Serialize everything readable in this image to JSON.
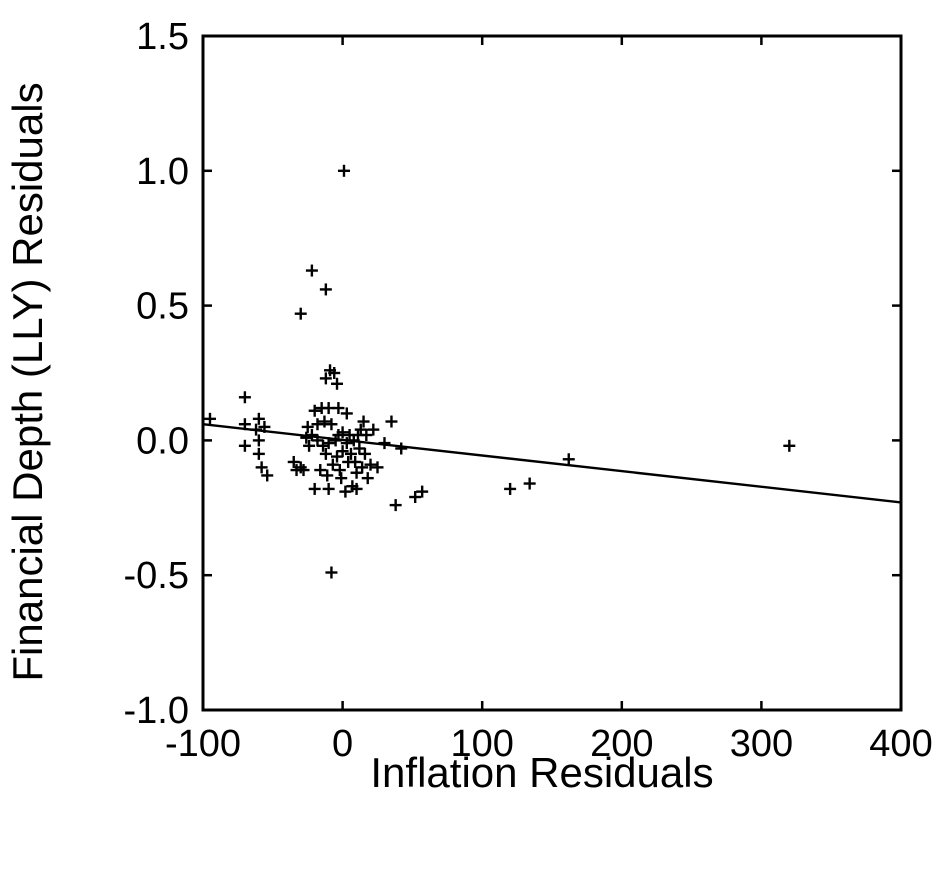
{
  "chart_data": {
    "type": "scatter",
    "xlabel": "Inflation Residuals",
    "ylabel": "Financial Depth (LLY) Residuals",
    "xlim": [
      -100,
      400
    ],
    "ylim": [
      -1.0,
      1.5
    ],
    "x_ticks": [
      -100,
      0,
      100,
      200,
      300,
      400
    ],
    "x_tick_labels": [
      "-100",
      "0",
      "100",
      "200",
      "300",
      "400"
    ],
    "y_ticks": [
      -1.0,
      -0.5,
      0.0,
      0.5,
      1.0,
      1.5
    ],
    "y_tick_labels": [
      "-1.0",
      "-0.5",
      "0.0",
      "0.5",
      "1.0",
      "1.5"
    ],
    "grid": false,
    "marker": "plus",
    "fit_line": {
      "x": [
        -100,
        400
      ],
      "y": [
        0.06,
        -0.23
      ]
    },
    "points": [
      {
        "x": -95,
        "y": 0.08
      },
      {
        "x": -70,
        "y": 0.16
      },
      {
        "x": -70,
        "y": 0.06
      },
      {
        "x": -70,
        "y": -0.02
      },
      {
        "x": -62,
        "y": 0.04
      },
      {
        "x": -60,
        "y": 0.08
      },
      {
        "x": -60,
        "y": 0.0
      },
      {
        "x": -60,
        "y": -0.05
      },
      {
        "x": -58,
        "y": -0.1
      },
      {
        "x": -56,
        "y": 0.05
      },
      {
        "x": -54,
        "y": -0.13
      },
      {
        "x": -35,
        "y": -0.08
      },
      {
        "x": -33,
        "y": -0.11
      },
      {
        "x": -30,
        "y": -0.1
      },
      {
        "x": -30,
        "y": 0.47
      },
      {
        "x": -28,
        "y": -0.11
      },
      {
        "x": -26,
        "y": 0.01
      },
      {
        "x": -25,
        "y": 0.05
      },
      {
        "x": -24,
        "y": -0.02
      },
      {
        "x": -22,
        "y": 0.02
      },
      {
        "x": -22,
        "y": 0.63
      },
      {
        "x": -20,
        "y": 0.11
      },
      {
        "x": -20,
        "y": -0.18
      },
      {
        "x": -18,
        "y": 0.06
      },
      {
        "x": -18,
        "y": 0.0
      },
      {
        "x": -16,
        "y": -0.11
      },
      {
        "x": -15,
        "y": 0.12
      },
      {
        "x": -14,
        "y": -0.02
      },
      {
        "x": -13,
        "y": 0.07
      },
      {
        "x": -12,
        "y": 0.56
      },
      {
        "x": -12,
        "y": 0.23
      },
      {
        "x": -12,
        "y": -0.05
      },
      {
        "x": -11,
        "y": -0.13
      },
      {
        "x": -10,
        "y": 0.12
      },
      {
        "x": -10,
        "y": -0.01
      },
      {
        "x": -10,
        "y": -0.18
      },
      {
        "x": -9,
        "y": 0.26
      },
      {
        "x": -8,
        "y": -0.49
      },
      {
        "x": -8,
        "y": 0.06
      },
      {
        "x": -7,
        "y": -0.09
      },
      {
        "x": -6,
        "y": 0.25
      },
      {
        "x": -5,
        "y": 0.0
      },
      {
        "x": -4,
        "y": 0.21
      },
      {
        "x": -4,
        "y": -0.06
      },
      {
        "x": -3,
        "y": 0.12
      },
      {
        "x": -3,
        "y": 0.02
      },
      {
        "x": -2,
        "y": -0.11
      },
      {
        "x": -1,
        "y": -0.14
      },
      {
        "x": 0,
        "y": 0.03
      },
      {
        "x": 0,
        "y": -0.04
      },
      {
        "x": 1,
        "y": 1.0
      },
      {
        "x": 2,
        "y": -0.19
      },
      {
        "x": 3,
        "y": 0.1
      },
      {
        "x": 3,
        "y": -0.01
      },
      {
        "x": 4,
        "y": -0.08
      },
      {
        "x": 5,
        "y": 0.02
      },
      {
        "x": 6,
        "y": -0.05
      },
      {
        "x": 7,
        "y": -0.17
      },
      {
        "x": 8,
        "y": 0.0
      },
      {
        "x": 9,
        "y": -0.08
      },
      {
        "x": 10,
        "y": -0.12
      },
      {
        "x": 10,
        "y": -0.18
      },
      {
        "x": 11,
        "y": 0.02
      },
      {
        "x": 12,
        "y": -0.03
      },
      {
        "x": 13,
        "y": 0.04
      },
      {
        "x": 14,
        "y": -0.1
      },
      {
        "x": 15,
        "y": 0.07
      },
      {
        "x": 16,
        "y": -0.05
      },
      {
        "x": 17,
        "y": 0.02
      },
      {
        "x": 18,
        "y": -0.14
      },
      {
        "x": 20,
        "y": -0.09
      },
      {
        "x": 22,
        "y": 0.04
      },
      {
        "x": 25,
        "y": -0.1
      },
      {
        "x": 30,
        "y": -0.01
      },
      {
        "x": 35,
        "y": 0.07
      },
      {
        "x": 38,
        "y": -0.24
      },
      {
        "x": 42,
        "y": -0.03
      },
      {
        "x": 52,
        "y": -0.21
      },
      {
        "x": 57,
        "y": -0.19
      },
      {
        "x": 120,
        "y": -0.18
      },
      {
        "x": 134,
        "y": -0.16
      },
      {
        "x": 162,
        "y": -0.07
      },
      {
        "x": 320,
        "y": -0.02
      }
    ]
  }
}
